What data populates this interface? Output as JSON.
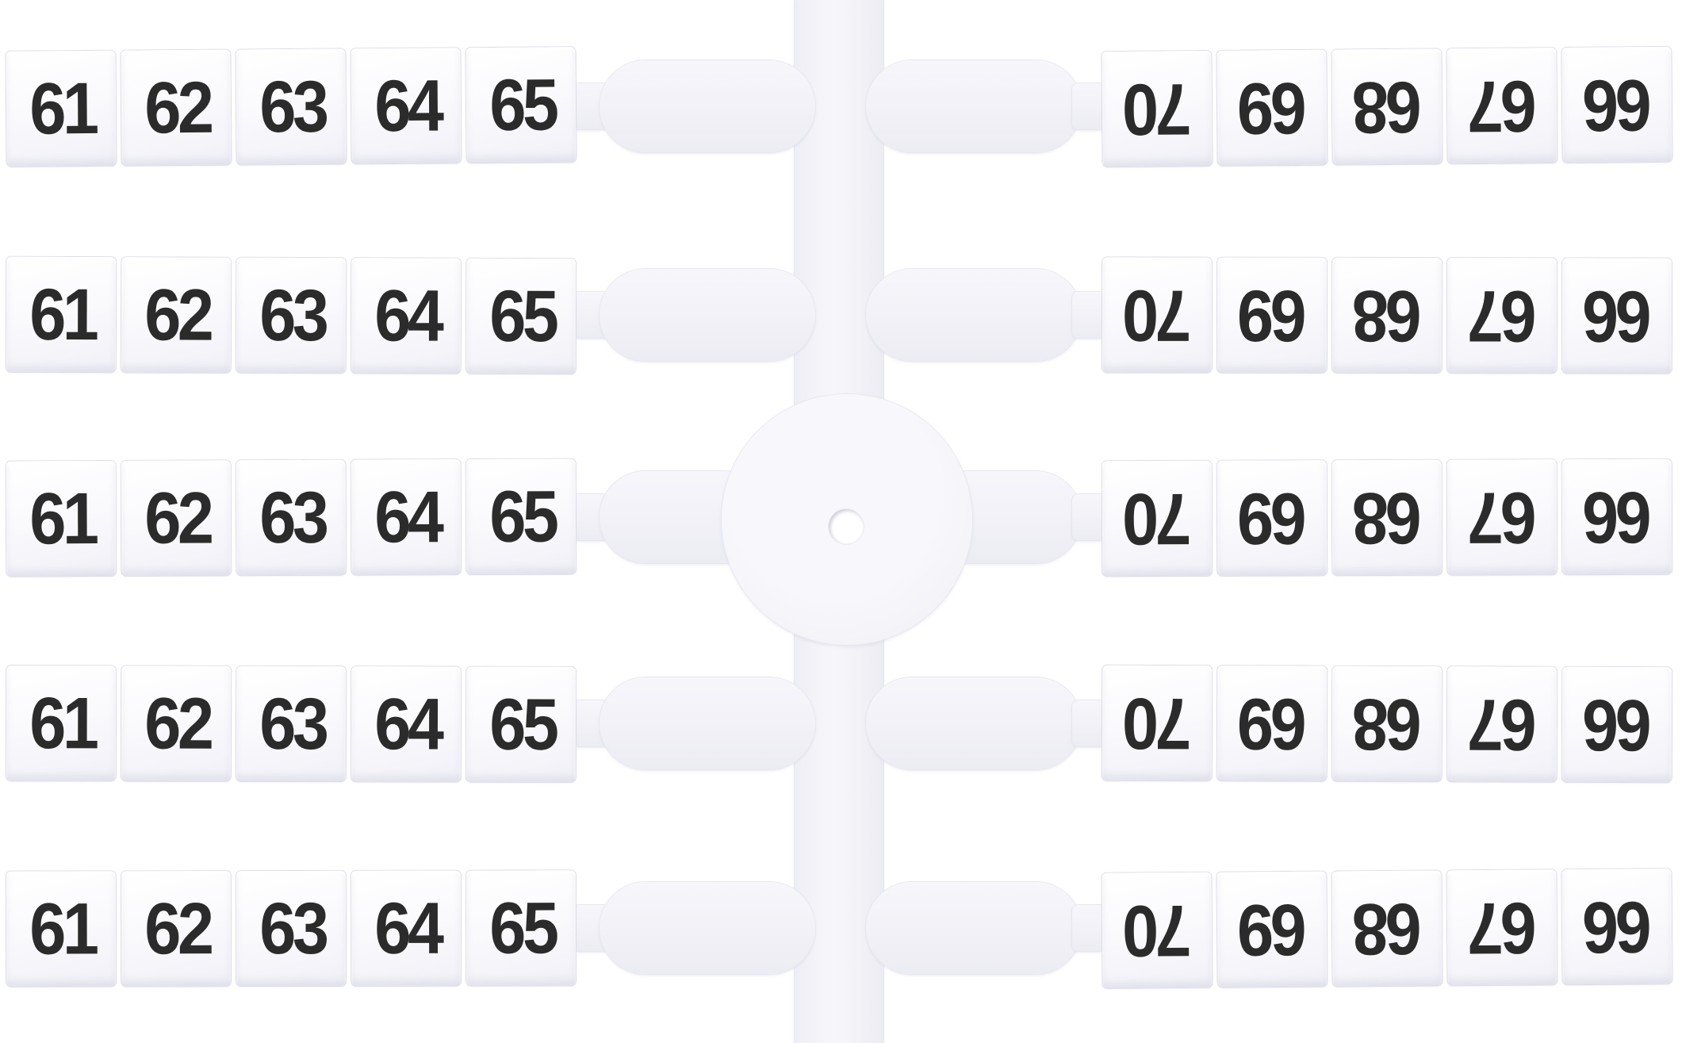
{
  "scene": {
    "description": "Photo of white plastic terminal-block marker tags on a cross-shaped moulding sprue; five identical horizontal strips on each side of a central runner, right-hand strips printed upside down",
    "background_color": "#ffffff",
    "plastic_color": "#f2f2f8",
    "tag_face_color": "#fbfbfe",
    "digit_color": "#2b2b2b",
    "rows_count": 5,
    "tags_per_strip": 5
  },
  "right_strip": {
    "rotation_degrees": 180,
    "reading_order_values": [
      "66",
      "67",
      "68",
      "69",
      "70"
    ]
  },
  "marker_rows": [
    {
      "left": [
        "61",
        "62",
        "63",
        "64",
        "65"
      ],
      "right": [
        "70",
        "69",
        "68",
        "67",
        "66"
      ]
    },
    {
      "left": [
        "61",
        "62",
        "63",
        "64",
        "65"
      ],
      "right": [
        "70",
        "69",
        "68",
        "67",
        "66"
      ]
    },
    {
      "left": [
        "61",
        "62",
        "63",
        "64",
        "65"
      ],
      "right": [
        "70",
        "69",
        "68",
        "67",
        "66"
      ]
    },
    {
      "left": [
        "61",
        "62",
        "63",
        "64",
        "65"
      ],
      "right": [
        "70",
        "69",
        "68",
        "67",
        "66"
      ]
    },
    {
      "left": [
        "61",
        "62",
        "63",
        "64",
        "65"
      ],
      "right": [
        "70",
        "69",
        "68",
        "67",
        "66"
      ]
    }
  ]
}
